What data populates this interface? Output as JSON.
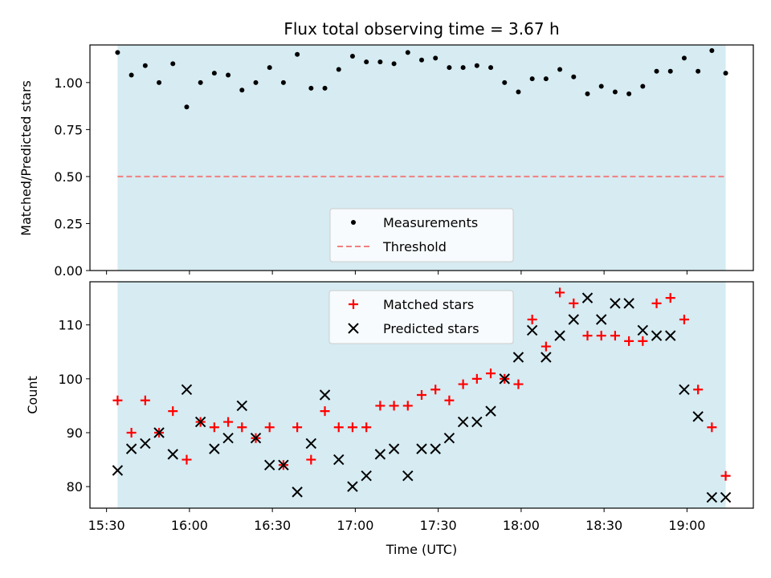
{
  "chart_data": [
    {
      "type": "scatter",
      "title": "Flux total observing time = 3.67 h",
      "xlabel": "",
      "ylabel": "Matched/Predicted stars",
      "xlim": [
        "15:24",
        "19:24"
      ],
      "ylim": [
        0,
        1.2
      ],
      "yticks": [
        0.0,
        0.25,
        0.5,
        0.75,
        1.0
      ],
      "ytick_labels": [
        "0.00",
        "0.25",
        "0.50",
        "0.75",
        "1.00"
      ],
      "x_ticks": [
        "15:30",
        "16:00",
        "16:30",
        "17:00",
        "17:30",
        "18:00",
        "18:30",
        "19:00"
      ],
      "observing_window": [
        "15:34",
        "19:14"
      ],
      "window_color": "#add8e6",
      "legend": {
        "placement": "lower center",
        "entries": [
          "Measurements",
          "Threshold"
        ]
      },
      "threshold": {
        "name": "Threshold",
        "value": 0.5,
        "color": "#f08080",
        "style": "dashed"
      },
      "series": [
        {
          "name": "Measurements",
          "marker": "dot",
          "color": "#000000",
          "x": [
            "15:34",
            "15:39",
            "15:44",
            "15:49",
            "15:54",
            "15:59",
            "16:04",
            "16:09",
            "16:14",
            "16:19",
            "16:24",
            "16:29",
            "16:34",
            "16:39",
            "16:44",
            "16:49",
            "16:54",
            "16:59",
            "17:04",
            "17:09",
            "17:14",
            "17:19",
            "17:24",
            "17:29",
            "17:34",
            "17:39",
            "17:44",
            "17:49",
            "17:54",
            "17:59",
            "18:04",
            "18:09",
            "18:14",
            "18:19",
            "18:24",
            "18:29",
            "18:34",
            "18:39",
            "18:44",
            "18:49",
            "18:54",
            "18:59",
            "19:04",
            "19:09",
            "19:14"
          ],
          "values": [
            1.16,
            1.04,
            1.09,
            1.0,
            1.1,
            0.87,
            1.0,
            1.05,
            1.04,
            0.96,
            1.0,
            1.08,
            1.0,
            1.15,
            0.97,
            0.97,
            1.07,
            1.14,
            1.11,
            1.11,
            1.1,
            1.16,
            1.12,
            1.13,
            1.08,
            1.08,
            1.09,
            1.08,
            1.0,
            0.95,
            1.02,
            1.02,
            1.07,
            1.03,
            0.94,
            0.98,
            0.95,
            0.94,
            0.98,
            1.06,
            1.06,
            1.13,
            1.06,
            1.17,
            1.05
          ]
        }
      ]
    },
    {
      "type": "scatter",
      "title": "",
      "xlabel": "Time (UTC)",
      "ylabel": "Count",
      "xlim": [
        "15:24",
        "19:24"
      ],
      "ylim": [
        76,
        118
      ],
      "yticks": [
        80,
        90,
        100,
        110
      ],
      "ytick_labels": [
        "80",
        "90",
        "100",
        "110"
      ],
      "x_ticks": [
        "15:30",
        "16:00",
        "16:30",
        "17:00",
        "17:30",
        "18:00",
        "18:30",
        "19:00"
      ],
      "x_tick_labels": [
        "15:30",
        "16:00",
        "16:30",
        "17:00",
        "17:30",
        "18:00",
        "18:30",
        "19:00"
      ],
      "observing_window": [
        "15:34",
        "19:14"
      ],
      "window_color": "#add8e6",
      "legend": {
        "placement": "upper center",
        "entries": [
          "Matched stars",
          "Predicted stars"
        ]
      },
      "series": [
        {
          "name": "Matched stars",
          "marker": "plus",
          "color": "#ff0000",
          "x": [
            "15:34",
            "15:39",
            "15:44",
            "15:49",
            "15:54",
            "15:59",
            "16:04",
            "16:09",
            "16:14",
            "16:19",
            "16:24",
            "16:29",
            "16:34",
            "16:39",
            "16:44",
            "16:49",
            "16:54",
            "16:59",
            "17:04",
            "17:09",
            "17:14",
            "17:19",
            "17:24",
            "17:29",
            "17:34",
            "17:39",
            "17:44",
            "17:49",
            "17:54",
            "17:59",
            "18:04",
            "18:09",
            "18:14",
            "18:19",
            "18:24",
            "18:29",
            "18:34",
            "18:39",
            "18:44",
            "18:49",
            "18:54",
            "18:59",
            "19:04",
            "19:09",
            "19:14"
          ],
          "values": [
            96,
            90,
            96,
            90,
            94,
            85,
            92,
            91,
            92,
            91,
            89,
            91,
            84,
            91,
            85,
            94,
            91,
            91,
            91,
            95,
            95,
            95,
            97,
            98,
            96,
            99,
            100,
            101,
            100,
            99,
            111,
            106,
            116,
            114,
            108,
            108,
            108,
            107,
            107,
            114,
            115,
            111,
            98,
            91,
            82
          ]
        },
        {
          "name": "Predicted stars",
          "marker": "x",
          "color": "#000000",
          "x": [
            "15:34",
            "15:39",
            "15:44",
            "15:49",
            "15:54",
            "15:59",
            "16:04",
            "16:09",
            "16:14",
            "16:19",
            "16:24",
            "16:29",
            "16:34",
            "16:39",
            "16:44",
            "16:49",
            "16:54",
            "16:59",
            "17:04",
            "17:09",
            "17:14",
            "17:19",
            "17:24",
            "17:29",
            "17:34",
            "17:39",
            "17:44",
            "17:49",
            "17:54",
            "17:59",
            "18:04",
            "18:09",
            "18:14",
            "18:19",
            "18:24",
            "18:29",
            "18:34",
            "18:39",
            "18:44",
            "18:49",
            "18:54",
            "18:59",
            "19:04",
            "19:09",
            "19:14"
          ],
          "values": [
            83,
            87,
            88,
            90,
            86,
            98,
            92,
            87,
            89,
            95,
            89,
            84,
            84,
            79,
            88,
            97,
            85,
            80,
            82,
            86,
            87,
            82,
            87,
            87,
            89,
            92,
            92,
            94,
            100,
            104,
            109,
            104,
            108,
            111,
            115,
            111,
            114,
            114,
            109,
            108,
            108,
            98,
            93,
            78,
            78
          ]
        }
      ]
    }
  ]
}
